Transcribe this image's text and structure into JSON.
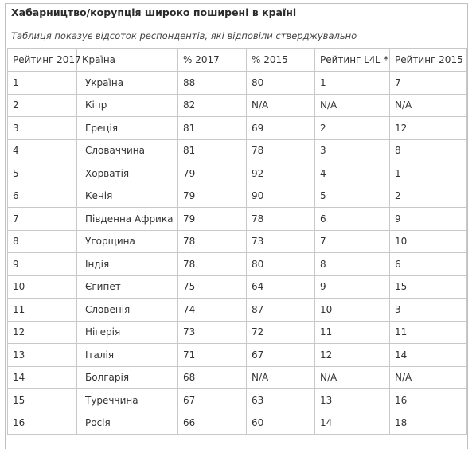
{
  "header": {
    "title": "Хабарництво/корупція широко поширені в країні",
    "subtitle": "Таблиця показує відсоток респондентів, які відповіли стверджувально"
  },
  "table": {
    "columns": [
      "Рейтинг 2017",
      "Країна",
      "% 2017",
      "% 2015",
      "Рейтинг L4L *",
      "Рейтинг 2015"
    ],
    "rows": [
      [
        "1",
        "Україна",
        "88",
        "80",
        "1",
        "7"
      ],
      [
        "2",
        "Кіпр",
        "82",
        "N/A",
        "N/A",
        "N/A"
      ],
      [
        "3",
        "Греція",
        "81",
        "69",
        "2",
        "12"
      ],
      [
        "4",
        "Словаччина",
        "81",
        "78",
        "3",
        "8"
      ],
      [
        "5",
        "Хорватія",
        "79",
        "92",
        "4",
        "1"
      ],
      [
        "6",
        "Кенія",
        "79",
        "90",
        "5",
        "2"
      ],
      [
        "7",
        "Південна Африка",
        "79",
        "78",
        "6",
        "9"
      ],
      [
        "8",
        "Угорщина",
        "78",
        "73",
        "7",
        "10"
      ],
      [
        "9",
        "Індія",
        "78",
        "80",
        "8",
        "6"
      ],
      [
        "10",
        "Єгипет",
        "75",
        "64",
        "9",
        "15"
      ],
      [
        "11",
        "Словенія",
        "74",
        "87",
        "10",
        "3"
      ],
      [
        "12",
        "Нігерія",
        "73",
        "72",
        "11",
        "11"
      ],
      [
        "13",
        "Італія",
        "71",
        "67",
        "12",
        "14"
      ],
      [
        "14",
        "Болгарія",
        "68",
        "N/A",
        "N/A",
        "N/A"
      ],
      [
        "15",
        "Туреччина",
        "67",
        "63",
        "13",
        "16"
      ],
      [
        "16",
        "Росія",
        "66",
        "60",
        "14",
        "18"
      ]
    ]
  }
}
